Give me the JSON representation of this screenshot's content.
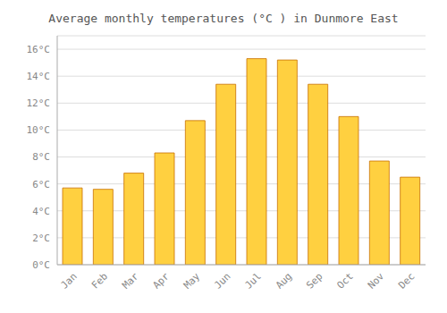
{
  "chart_data": {
    "type": "bar",
    "title": "Average monthly temperatures (°C ) in Dunmore East",
    "categories": [
      "Jan",
      "Feb",
      "Mar",
      "Apr",
      "May",
      "Jun",
      "Jul",
      "Aug",
      "Sep",
      "Oct",
      "Nov",
      "Dec"
    ],
    "values": [
      5.7,
      5.6,
      6.8,
      8.3,
      10.7,
      13.4,
      15.3,
      15.2,
      13.4,
      11.0,
      7.7,
      6.5
    ],
    "color": "#FFD040",
    "ylim": [
      0,
      17
    ],
    "yticks": [
      {
        "value": 0,
        "label": "0°C"
      },
      {
        "value": 2,
        "label": "2°C"
      },
      {
        "value": 4,
        "label": "4°C"
      },
      {
        "value": 6,
        "label": "6°C"
      },
      {
        "value": 8,
        "label": "8°C"
      },
      {
        "value": 10,
        "label": "10°C"
      },
      {
        "value": 12,
        "label": "12°C"
      },
      {
        "value": 14,
        "label": "14°C"
      },
      {
        "value": 16,
        "label": "16°C"
      }
    ],
    "grid": true
  }
}
